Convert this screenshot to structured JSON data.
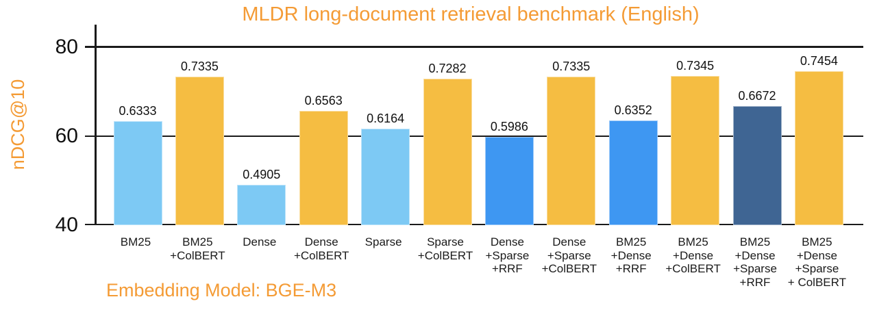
{
  "page": {
    "background": "#ffffff"
  },
  "chart": {
    "title": "MLDR long-document retrieval benchmark (English)",
    "ylabel": "nDCG@10",
    "annotation": "Embedding Model: BGE-M3",
    "accent_color": "#F49B35",
    "axis_color": "#1a1a1a",
    "text_color": "#111111"
  },
  "chart_data": {
    "type": "bar",
    "title": "MLDR long-document retrieval benchmark (English)",
    "ylabel": "nDCG@10",
    "xlabel": "Embedding Model: BGE-M3",
    "ylim": [
      40,
      85
    ],
    "yticks": [
      80,
      60,
      40
    ],
    "grid": true,
    "legend": false,
    "y_scale_note": "axis ticks are nDCG@10 × 100",
    "categories": [
      "BM25",
      "BM25\n+ColBERT",
      "Dense",
      "Dense\n+ColBERT",
      "Sparse",
      "Sparse\n+ColBERT",
      "Dense\n+Sparse\n+RRF",
      "Dense\n+Sparse\n+ColBERT",
      "BM25\n+Dense\n+RRF",
      "BM25\n+Dense\n+ColBERT",
      "BM25\n+Dense\n+Sparse\n+RRF",
      "BM25\n+Dense\n+Sparse\n+ ColBERT"
    ],
    "values": [
      0.6333,
      0.7335,
      0.4905,
      0.6563,
      0.6164,
      0.7282,
      0.5986,
      0.7335,
      0.6352,
      0.7345,
      0.6672,
      0.7454
    ],
    "value_labels": [
      "0.6333",
      "0.7335",
      "0.4905",
      "0.6563",
      "0.6164",
      "0.7282",
      "0.5986",
      "0.7335",
      "0.6352",
      "0.7345",
      "0.6672",
      "0.7454"
    ],
    "bar_colors": [
      "#7DC9F4",
      "#F5BD42",
      "#7DC9F4",
      "#F5BD42",
      "#7DC9F4",
      "#F5BD42",
      "#3E97F2",
      "#F5BD42",
      "#3E97F2",
      "#F5BD42",
      "#3F6593",
      "#F5BD42"
    ],
    "palette": {
      "single_retriever": "#7DC9F4",
      "two_way_rrf_fusion": "#3E97F2",
      "three_way_rrf_fusion": "#3F6593",
      "colbert_rerank": "#F5BD42"
    }
  }
}
